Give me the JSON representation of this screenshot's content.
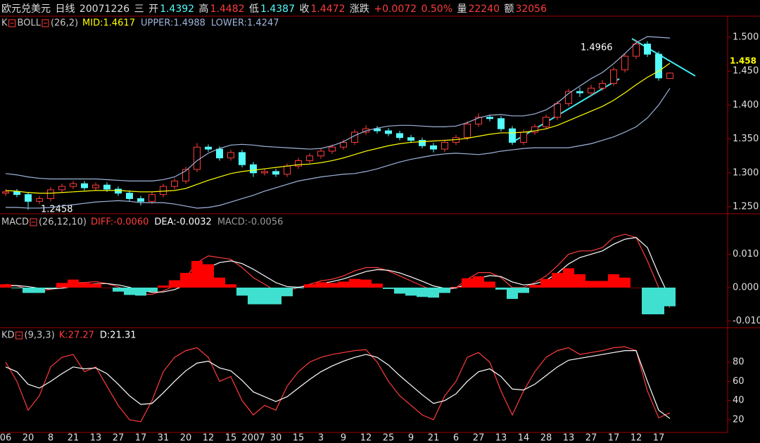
{
  "header": {
    "symbol": "欧元兑美元",
    "period": "日线",
    "date": "20071226",
    "weekday": "三",
    "fields": [
      {
        "label": "开",
        "value": "1.4392"
      },
      {
        "label": "高",
        "value": "1.4482"
      },
      {
        "label": "低",
        "value": "1.4387"
      },
      {
        "label": "收",
        "value": "1.4472"
      },
      {
        "label": "涨跌",
        "value": "+0.0072"
      }
    ],
    "change_pct": "0.50%",
    "volume_label": "量",
    "volume": "22240",
    "amount_label": "额",
    "amount": "32056"
  },
  "chart_data": [
    {
      "type": "candlestick",
      "title": "K",
      "study": "BOLL",
      "params": "(26,2)",
      "up_color": "#ff3c3c",
      "down_color": "#54fcfc",
      "open": [
        1.27,
        1.272,
        1.268,
        1.258,
        1.262,
        1.275,
        1.28,
        1.284,
        1.278,
        1.282,
        1.276,
        1.27,
        1.262,
        1.258,
        1.268,
        1.28,
        1.288,
        1.305,
        1.338,
        1.335,
        1.322,
        1.33,
        1.312,
        1.3,
        1.302,
        1.298,
        1.31,
        1.318,
        1.325,
        1.332,
        1.338,
        1.345,
        1.36,
        1.365,
        1.362,
        1.358,
        1.352,
        1.348,
        1.34,
        1.335,
        1.345,
        1.352,
        1.372,
        1.382,
        1.38,
        1.365,
        1.345,
        1.36,
        1.368,
        1.382,
        1.402,
        1.42,
        1.418,
        1.425,
        1.432,
        1.452,
        1.472,
        1.49,
        1.475,
        1.4392
      ],
      "high": [
        1.276,
        1.276,
        1.272,
        1.266,
        1.279,
        1.284,
        1.288,
        1.288,
        1.286,
        1.286,
        1.28,
        1.274,
        1.266,
        1.272,
        1.284,
        1.292,
        1.309,
        1.344,
        1.342,
        1.339,
        1.334,
        1.334,
        1.316,
        1.306,
        1.306,
        1.314,
        1.322,
        1.329,
        1.336,
        1.342,
        1.349,
        1.364,
        1.37,
        1.369,
        1.366,
        1.362,
        1.356,
        1.352,
        1.344,
        1.349,
        1.356,
        1.376,
        1.388,
        1.386,
        1.384,
        1.369,
        1.364,
        1.372,
        1.386,
        1.406,
        1.424,
        1.426,
        1.43,
        1.437,
        1.456,
        1.476,
        1.4966,
        1.494,
        1.479,
        1.4482
      ],
      "low": [
        1.266,
        1.264,
        1.2458,
        1.254,
        1.258,
        1.271,
        1.276,
        1.274,
        1.274,
        1.272,
        1.266,
        1.258,
        1.252,
        1.254,
        1.264,
        1.276,
        1.284,
        1.301,
        1.331,
        1.318,
        1.318,
        1.308,
        1.294,
        1.296,
        1.294,
        1.294,
        1.306,
        1.314,
        1.321,
        1.328,
        1.334,
        1.341,
        1.356,
        1.358,
        1.354,
        1.348,
        1.344,
        1.336,
        1.33,
        1.331,
        1.341,
        1.348,
        1.368,
        1.376,
        1.361,
        1.341,
        1.341,
        1.356,
        1.364,
        1.378,
        1.398,
        1.412,
        1.414,
        1.421,
        1.428,
        1.448,
        1.468,
        1.471,
        1.436,
        1.4387
      ],
      "close": [
        1.272,
        1.268,
        1.258,
        1.262,
        1.275,
        1.28,
        1.284,
        1.278,
        1.282,
        1.276,
        1.27,
        1.262,
        1.258,
        1.268,
        1.28,
        1.288,
        1.305,
        1.338,
        1.335,
        1.322,
        1.33,
        1.312,
        1.3,
        1.302,
        1.298,
        1.31,
        1.318,
        1.325,
        1.332,
        1.338,
        1.345,
        1.36,
        1.365,
        1.362,
        1.358,
        1.352,
        1.348,
        1.34,
        1.335,
        1.345,
        1.352,
        1.372,
        1.382,
        1.38,
        1.365,
        1.345,
        1.36,
        1.368,
        1.382,
        1.402,
        1.42,
        1.418,
        1.425,
        1.432,
        1.452,
        1.472,
        1.49,
        1.475,
        1.44,
        1.4472
      ],
      "series": [
        {
          "name": "MID:1.4617",
          "color": "#ffff00",
          "values": [
            1.274,
            1.273,
            1.271,
            1.27,
            1.27,
            1.271,
            1.272,
            1.273,
            1.274,
            1.274,
            1.274,
            1.273,
            1.272,
            1.272,
            1.273,
            1.274,
            1.277,
            1.283,
            1.289,
            1.294,
            1.299,
            1.302,
            1.304,
            1.306,
            1.308,
            1.31,
            1.312,
            1.313,
            1.315,
            1.318,
            1.322,
            1.327,
            1.332,
            1.336,
            1.34,
            1.343,
            1.345,
            1.346,
            1.347,
            1.348,
            1.349,
            1.351,
            1.354,
            1.357,
            1.359,
            1.359,
            1.36,
            1.362,
            1.365,
            1.37,
            1.377,
            1.384,
            1.391,
            1.398,
            1.407,
            1.418,
            1.43,
            1.441,
            1.45,
            1.4617
          ]
        },
        {
          "name": "UPPER:1.4988",
          "color": "#a0b4dc",
          "values": [
            1.299,
            1.297,
            1.294,
            1.292,
            1.291,
            1.291,
            1.291,
            1.291,
            1.291,
            1.29,
            1.289,
            1.288,
            1.288,
            1.288,
            1.29,
            1.294,
            1.303,
            1.318,
            1.329,
            1.336,
            1.341,
            1.342,
            1.341,
            1.339,
            1.338,
            1.337,
            1.336,
            1.335,
            1.336,
            1.34,
            1.346,
            1.355,
            1.362,
            1.366,
            1.369,
            1.37,
            1.37,
            1.369,
            1.368,
            1.368,
            1.369,
            1.374,
            1.381,
            1.385,
            1.386,
            1.384,
            1.384,
            1.387,
            1.393,
            1.403,
            1.417,
            1.428,
            1.439,
            1.448,
            1.461,
            1.476,
            1.492,
            1.501,
            1.5,
            1.4988
          ]
        },
        {
          "name": "LOWER:1.4247",
          "color": "#a0b4dc",
          "values": [
            1.249,
            1.249,
            1.248,
            1.248,
            1.249,
            1.251,
            1.253,
            1.255,
            1.257,
            1.258,
            1.259,
            1.258,
            1.256,
            1.256,
            1.256,
            1.254,
            1.251,
            1.248,
            1.249,
            1.252,
            1.257,
            1.262,
            1.267,
            1.273,
            1.278,
            1.283,
            1.288,
            1.291,
            1.294,
            1.296,
            1.298,
            1.299,
            1.302,
            1.306,
            1.311,
            1.316,
            1.32,
            1.323,
            1.326,
            1.328,
            1.329,
            1.328,
            1.327,
            1.329,
            1.332,
            1.334,
            1.336,
            1.337,
            1.337,
            1.337,
            1.337,
            1.34,
            1.343,
            1.348,
            1.353,
            1.36,
            1.368,
            1.381,
            1.4,
            1.4247
          ]
        }
      ],
      "annotations": [
        "1.4966",
        "1.2458"
      ],
      "last_price": "1.458",
      "ylim": [
        1.2407,
        1.5114
      ],
      "yticks": [
        {
          "value": 1.25,
          "label": "1.250"
        },
        {
          "value": 1.3,
          "label": "1.300"
        },
        {
          "value": 1.35,
          "label": "1.350"
        },
        {
          "value": 1.4,
          "label": "1.400"
        },
        {
          "value": 1.45,
          "label": "1.450"
        },
        {
          "value": 1.5,
          "label": "1.500"
        }
      ]
    },
    {
      "type": "macd",
      "title": "MACD",
      "params": "(26,12,10)",
      "series": [
        {
          "name": "DIFF:-0.0060",
          "color": "#ff3c3c",
          "values": [
            0.001,
            0.0005,
            -0.0005,
            -0.001,
            -0.0005,
            0.0005,
            0.0015,
            0.0015,
            0.0018,
            0.0012,
            0.0002,
            -0.001,
            -0.002,
            -0.002,
            -0.001,
            0.0005,
            0.003,
            0.0075,
            0.0095,
            0.009,
            0.0085,
            0.006,
            0.003,
            0.001,
            -0.001,
            -0.001,
            0.0,
            0.001,
            0.002,
            0.0025,
            0.0035,
            0.005,
            0.006,
            0.006,
            0.005,
            0.0035,
            0.002,
            0.0005,
            -0.001,
            -0.001,
            0.0,
            0.0025,
            0.0045,
            0.0045,
            0.003,
            0.0,
            0.0,
            0.0015,
            0.0035,
            0.0065,
            0.01,
            0.011,
            0.011,
            0.012,
            0.015,
            0.016,
            0.015,
            0.008,
            0.0,
            -0.006
          ]
        },
        {
          "name": "DEA:-0.0032",
          "color": "#ffffff",
          "values": [
            0.0005,
            0.0006,
            0.0003,
            -0.0002,
            -0.0004,
            -0.0002,
            0.0003,
            0.0008,
            0.0012,
            0.0012,
            0.0008,
            0.0001,
            -0.0008,
            -0.0014,
            -0.0013,
            -0.0006,
            0.0008,
            0.0035,
            0.006,
            0.0075,
            0.008,
            0.0072,
            0.0055,
            0.0035,
            0.0015,
            0.0003,
            0.0001,
            0.0005,
            0.0012,
            0.0018,
            0.0026,
            0.0037,
            0.0048,
            0.0054,
            0.0052,
            0.0044,
            0.0032,
            0.0019,
            0.0005,
            -0.0002,
            -0.0001,
            0.0011,
            0.0028,
            0.0036,
            0.0033,
            0.0017,
            0.0008,
            0.0011,
            0.0022,
            0.0043,
            0.0071,
            0.009,
            0.01,
            0.011,
            0.013,
            0.0145,
            0.015,
            0.012,
            0.004,
            -0.0032
          ]
        },
        {
          "name": "MACD:-0.0056",
          "color": "#9a9a9a",
          "kind": "histogram",
          "up_color": "#ff0000",
          "down_color": "#40e0d0",
          "values": [
            0.001,
            -0.0002,
            -0.0016,
            -0.0016,
            -0.0002,
            0.0014,
            0.0024,
            0.0014,
            0.0012,
            0.0,
            -0.0012,
            -0.0022,
            -0.0024,
            -0.0012,
            0.0006,
            0.0022,
            0.0044,
            0.008,
            0.007,
            0.003,
            0.001,
            -0.0024,
            -0.005,
            -0.005,
            -0.005,
            -0.0026,
            -0.0002,
            0.001,
            0.0016,
            0.0014,
            0.0018,
            0.0026,
            0.0024,
            0.0012,
            -0.0004,
            -0.0018,
            -0.0024,
            -0.0028,
            -0.003,
            -0.0016,
            0.0002,
            0.0028,
            0.0034,
            0.0018,
            -0.0006,
            -0.0034,
            -0.0016,
            0.0008,
            0.0026,
            0.0044,
            0.0058,
            0.004,
            0.002,
            0.002,
            0.004,
            0.003,
            0.0,
            -0.008,
            -0.008,
            -0.0056
          ]
        }
      ],
      "ylim": [
        -0.0118,
        0.0177
      ],
      "yticks": [
        {
          "value": -0.01,
          "label": "-0.010"
        },
        {
          "value": 0,
          "label": "0.000"
        },
        {
          "value": 0.01,
          "label": "0.010"
        }
      ]
    },
    {
      "type": "line",
      "title": "KD",
      "params": "(9,3,3)",
      "categories": [
        "06",
        null,
        "20",
        null,
        "8",
        null,
        "21",
        null,
        "13",
        null,
        "27",
        null,
        "17",
        null,
        "31",
        null,
        "20",
        null,
        "12",
        null,
        "15",
        null,
        "2007",
        null,
        "30",
        null,
        "15",
        null,
        "3",
        null,
        "9",
        null,
        "12",
        null,
        "25",
        null,
        "9",
        null,
        "21",
        null,
        "6",
        null,
        "27",
        null,
        "13",
        null,
        "14",
        null,
        "28",
        null,
        "13",
        null,
        "27",
        null,
        "17",
        null,
        "12",
        null,
        "17",
        null
      ],
      "series": [
        {
          "name": "K:27.27",
          "color": "#ff3c3c",
          "values": [
            80,
            60,
            30,
            45,
            75,
            85,
            88,
            70,
            75,
            55,
            35,
            20,
            18,
            40,
            70,
            85,
            92,
            95,
            85,
            60,
            65,
            40,
            25,
            35,
            30,
            55,
            70,
            80,
            85,
            88,
            90,
            92,
            93,
            80,
            60,
            45,
            35,
            25,
            20,
            45,
            60,
            85,
            90,
            80,
            50,
            25,
            50,
            70,
            85,
            92,
            95,
            88,
            90,
            92,
            95,
            96,
            92,
            50,
            22,
            27.27
          ]
        },
        {
          "name": "D:21.31",
          "color": "#ffffff",
          "values": [
            75,
            70,
            57,
            53,
            60,
            68,
            75,
            73,
            74,
            68,
            57,
            45,
            36,
            37,
            48,
            60,
            71,
            79,
            81,
            74,
            71,
            61,
            49,
            44,
            39,
            44,
            53,
            62,
            70,
            76,
            81,
            85,
            88,
            85,
            77,
            66,
            56,
            46,
            37,
            40,
            47,
            60,
            70,
            73,
            65,
            52,
            51,
            57,
            66,
            75,
            82,
            84,
            86,
            88,
            90,
            92,
            92,
            60,
            30,
            21.31
          ]
        }
      ],
      "ylim": [
        9,
        100.5
      ],
      "yticks": [
        20,
        40,
        60,
        80
      ]
    }
  ]
}
